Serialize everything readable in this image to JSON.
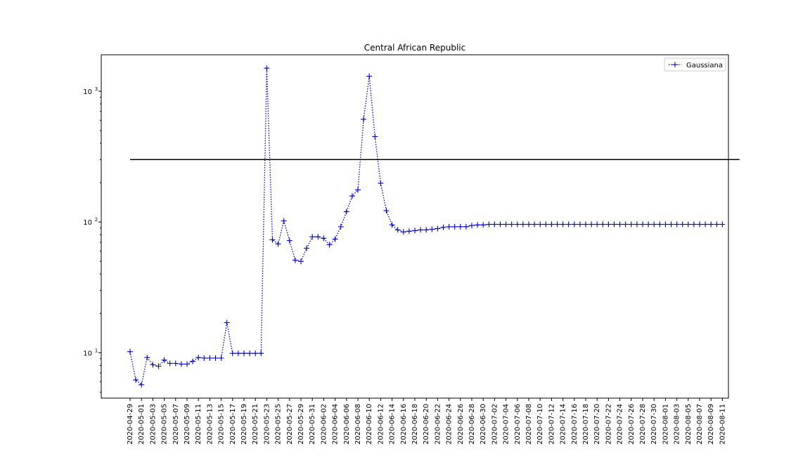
{
  "chart_data": {
    "type": "line",
    "title": "Central African Republic",
    "xlabel": "",
    "ylabel": "",
    "yscale": "log",
    "ylim": [
      4.5,
      1900
    ],
    "y_ticks": [
      10,
      100,
      1000
    ],
    "y_tick_labels": [
      [
        "10",
        "1"
      ],
      [
        "10",
        "2"
      ],
      [
        "10",
        "3"
      ]
    ],
    "grid": false,
    "legend_position": "top-right",
    "x_dates_start": "2020-04-29",
    "x_tick_step_days": 2,
    "x_tick_labels": [
      "2020-04-29",
      "2020-05-01",
      "2020-05-03",
      "2020-05-05",
      "2020-05-07",
      "2020-05-09",
      "2020-05-11",
      "2020-05-13",
      "2020-05-15",
      "2020-05-17",
      "2020-05-19",
      "2020-05-21",
      "2020-05-23",
      "2020-05-25",
      "2020-05-27",
      "2020-05-29",
      "2020-05-31",
      "2020-06-02",
      "2020-06-04",
      "2020-06-06",
      "2020-06-08",
      "2020-06-10",
      "2020-06-12",
      "2020-06-14",
      "2020-06-16",
      "2020-06-18",
      "2020-06-20",
      "2020-06-22",
      "2020-06-24",
      "2020-06-26",
      "2020-06-28",
      "2020-06-30",
      "2020-07-02",
      "2020-07-04",
      "2020-07-06",
      "2020-07-08",
      "2020-07-10",
      "2020-07-12",
      "2020-07-14",
      "2020-07-16",
      "2020-07-18",
      "2020-07-20",
      "2020-07-22",
      "2020-07-24",
      "2020-07-26",
      "2020-07-28",
      "2020-07-30",
      "2020-08-01",
      "2020-08-03",
      "2020-08-05",
      "2020-08-07",
      "2020-08-09",
      "2020-08-11"
    ],
    "series": [
      {
        "name": "Gaussiana",
        "color": "#0000cc",
        "style": "dotted",
        "marker": "plus",
        "values": [
          10.2,
          6.2,
          5.7,
          9.2,
          8.1,
          7.9,
          8.8,
          8.3,
          8.3,
          8.2,
          8.2,
          8.6,
          9.2,
          9.1,
          9.1,
          9.1,
          9.1,
          17,
          9.9,
          9.9,
          9.9,
          9.9,
          9.9,
          9.9,
          1500,
          73,
          68,
          102,
          72,
          51,
          50,
          63,
          77,
          77,
          75,
          67,
          74,
          92,
          120,
          158,
          176,
          610,
          1300,
          450,
          198,
          122,
          95,
          87,
          84,
          85,
          86,
          87,
          87,
          88,
          89,
          91,
          92,
          92,
          92,
          92,
          94,
          95,
          95,
          96,
          96,
          96,
          96,
          96,
          96,
          96,
          96,
          96,
          96,
          96,
          96,
          96,
          96,
          96,
          96,
          96,
          96,
          96,
          96,
          96,
          96,
          96,
          96,
          96,
          96,
          96,
          96,
          96,
          96,
          96,
          96,
          96,
          96,
          96,
          96,
          96,
          96,
          96,
          96,
          96,
          96
        ]
      },
      {
        "name": "",
        "color": "#000000",
        "style": "solid",
        "marker": "none",
        "values": [
          300,
          300
        ]
      }
    ],
    "reference_line": {
      "y": 300,
      "x_start": "2020-04-29",
      "x_end": "2020-08-14"
    }
  }
}
